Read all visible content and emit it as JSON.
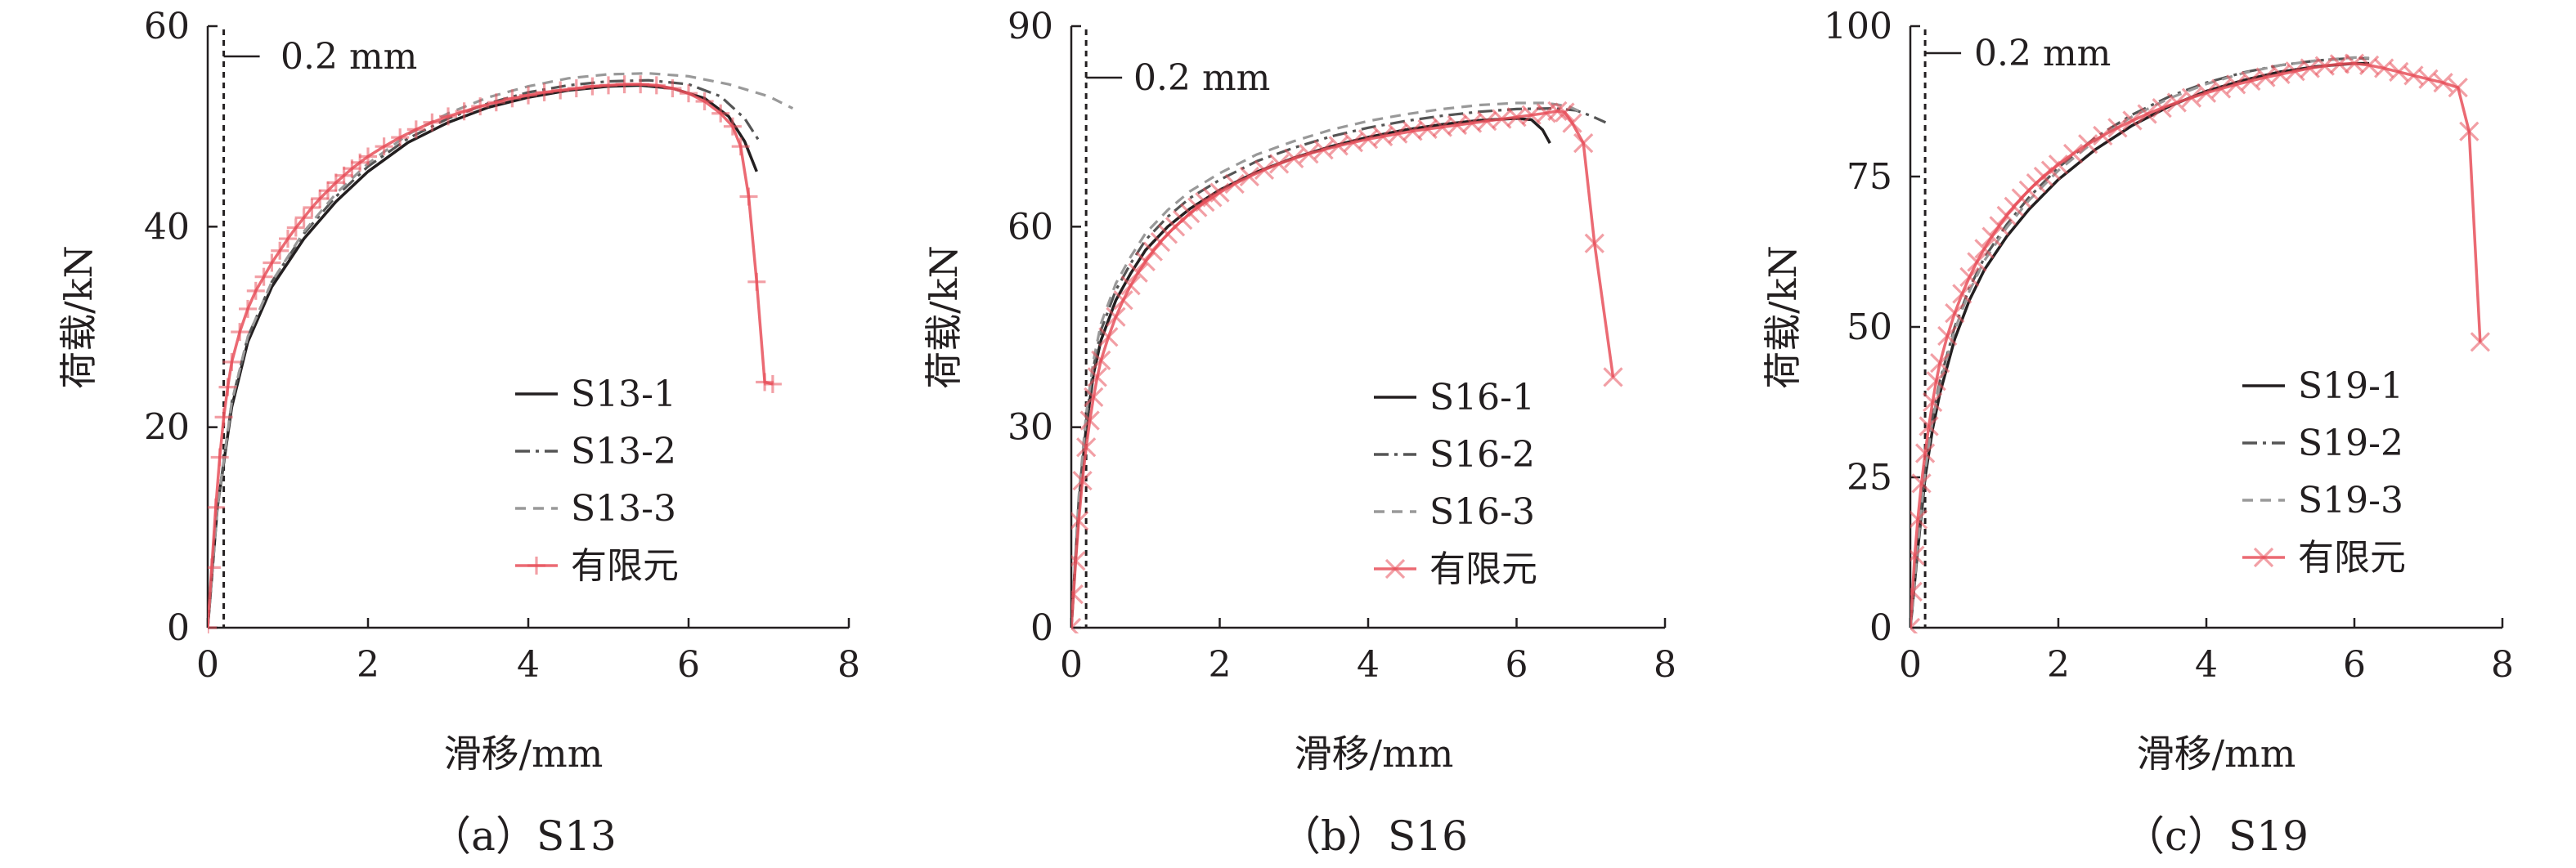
{
  "chart_data": [
    {
      "type": "line",
      "caption": "（a）S13",
      "xlabel": "滑移/mm",
      "ylabel": "荷载/kN",
      "xlim": [
        0,
        8
      ],
      "ylim": [
        0,
        60
      ],
      "xticks": [
        0,
        2,
        4,
        6,
        8
      ],
      "yticks": [
        0,
        20,
        40,
        60
      ],
      "annotation": "0.2 mm",
      "reference_x": 0.2,
      "legend_position": "bottom-right",
      "fe_marker": "plus",
      "series": [
        {
          "name": "S13-1",
          "style": "solid",
          "color": "#231f20",
          "x": [
            0,
            0.12,
            0.3,
            0.5,
            0.8,
            1.2,
            1.6,
            2.0,
            2.5,
            3.0,
            3.5,
            4.0,
            4.5,
            5.0,
            5.4,
            5.8,
            6.2,
            6.5,
            6.7,
            6.85
          ],
          "y": [
            0,
            12,
            22,
            28.5,
            34,
            38.8,
            42.5,
            45.5,
            48.4,
            50.4,
            51.9,
            52.9,
            53.6,
            54.0,
            54.1,
            53.8,
            52.8,
            51.0,
            48.5,
            45.5
          ]
        },
        {
          "name": "S13-2",
          "style": "dashdot",
          "color": "#555555",
          "x": [
            0,
            0.12,
            0.3,
            0.5,
            0.8,
            1.2,
            1.6,
            2.0,
            2.5,
            3.0,
            3.5,
            4.0,
            4.5,
            5.0,
            5.5,
            6.0,
            6.4,
            6.7,
            6.9
          ],
          "y": [
            0,
            12,
            22.5,
            29,
            34.5,
            39.3,
            43,
            46,
            48.8,
            50.8,
            52.3,
            53.4,
            54.1,
            54.5,
            54.6,
            54.2,
            53.0,
            50.8,
            48.3
          ]
        },
        {
          "name": "S13-3",
          "style": "dashed",
          "color": "#999999",
          "x": [
            0,
            0.12,
            0.3,
            0.5,
            0.8,
            1.2,
            1.6,
            2.0,
            2.5,
            3.0,
            3.5,
            4.0,
            4.5,
            5.0,
            5.5,
            6.0,
            6.5,
            7.0,
            7.3
          ],
          "y": [
            0,
            12,
            22.5,
            29,
            34.5,
            39.5,
            43.3,
            46.3,
            49.2,
            51.3,
            52.9,
            54.0,
            54.8,
            55.2,
            55.3,
            55.0,
            54.2,
            53.0,
            51.8
          ]
        },
        {
          "name": "有限元",
          "style": "marker",
          "color": "#e8505b",
          "x": [
            0,
            0.05,
            0.1,
            0.15,
            0.2,
            0.25,
            0.3,
            0.4,
            0.5,
            0.6,
            0.7,
            0.8,
            0.9,
            1.0,
            1.1,
            1.2,
            1.3,
            1.4,
            1.5,
            1.6,
            1.7,
            1.8,
            1.9,
            2.0,
            2.2,
            2.4,
            2.6,
            2.8,
            3.0,
            3.2,
            3.4,
            3.6,
            3.8,
            4.0,
            4.2,
            4.4,
            4.6,
            4.8,
            5.0,
            5.2,
            5.4,
            5.6,
            5.8,
            6.0,
            6.2,
            6.4,
            6.55,
            6.65,
            6.75,
            6.85,
            6.95,
            7.05
          ],
          "y": [
            0,
            6,
            12,
            17,
            21,
            24,
            26.5,
            29.5,
            31.8,
            33.6,
            35,
            36.4,
            37.6,
            38.8,
            39.9,
            40.9,
            41.9,
            42.8,
            43.6,
            44.4,
            45.1,
            45.8,
            46.4,
            47.0,
            48.0,
            48.9,
            49.7,
            50.4,
            51.0,
            51.5,
            52.0,
            52.4,
            52.8,
            53.1,
            53.4,
            53.6,
            53.8,
            54.0,
            54.1,
            54.2,
            54.2,
            54.1,
            53.8,
            53.3,
            52.5,
            51.3,
            50.0,
            48.0,
            43.0,
            34.5,
            24.5,
            24.3
          ]
        }
      ]
    },
    {
      "type": "line",
      "caption": "（b）S16",
      "xlabel": "滑移/mm",
      "ylabel": "荷载/kN",
      "xlim": [
        0,
        8
      ],
      "ylim": [
        0,
        90
      ],
      "xticks": [
        0,
        2,
        4,
        6,
        8
      ],
      "yticks": [
        0,
        30,
        60,
        90
      ],
      "annotation": "0.2 mm",
      "reference_x": 0.2,
      "legend_position": "bottom-right",
      "fe_marker": "cross",
      "series": [
        {
          "name": "S16-1",
          "style": "solid",
          "color": "#231f20",
          "x": [
            0,
            0.1,
            0.2,
            0.3,
            0.4,
            0.6,
            0.8,
            1.0,
            1.3,
            1.6,
            2.0,
            2.5,
            3.0,
            3.5,
            4.0,
            4.5,
            5.0,
            5.5,
            6.0,
            6.2,
            6.35,
            6.45
          ],
          "y": [
            0,
            18,
            30,
            38,
            43,
            49,
            53,
            56.5,
            60,
            62.7,
            65.5,
            68.2,
            70.3,
            72,
            73.4,
            74.5,
            75.3,
            75.9,
            76.2,
            76,
            74.5,
            72.5
          ]
        },
        {
          "name": "S16-2",
          "style": "dashdot",
          "color": "#555555",
          "x": [
            0,
            0.1,
            0.2,
            0.3,
            0.4,
            0.6,
            0.8,
            1.0,
            1.3,
            1.6,
            2.0,
            2.5,
            3.0,
            3.5,
            4.0,
            4.5,
            5.0,
            5.5,
            6.0,
            6.5,
            6.8,
            7.0,
            7.2
          ],
          "y": [
            0,
            19,
            31,
            39,
            44.5,
            50.5,
            54.5,
            58,
            61.5,
            64.3,
            67,
            69.8,
            71.8,
            73.5,
            74.8,
            75.8,
            76.6,
            77.2,
            77.6,
            77.7,
            77.4,
            76.6,
            75.6
          ]
        },
        {
          "name": "S16-3",
          "style": "dashed",
          "color": "#999999",
          "x": [
            0,
            0.1,
            0.2,
            0.3,
            0.4,
            0.6,
            0.8,
            1.0,
            1.3,
            1.6,
            2.0,
            2.5,
            3.0,
            3.5,
            4.0,
            4.5,
            5.0,
            5.5,
            6.0,
            6.4,
            6.7,
            6.9
          ],
          "y": [
            0,
            19.5,
            32,
            40,
            45.5,
            51.5,
            55.5,
            59,
            62.5,
            65.3,
            68,
            70.8,
            72.8,
            74.5,
            75.8,
            76.8,
            77.6,
            78.2,
            78.5,
            78.5,
            78,
            77
          ]
        },
        {
          "name": "有限元",
          "style": "marker",
          "color": "#e8505b",
          "x": [
            0,
            0.03,
            0.06,
            0.1,
            0.15,
            0.2,
            0.25,
            0.3,
            0.35,
            0.4,
            0.5,
            0.6,
            0.7,
            0.8,
            0.9,
            1.0,
            1.1,
            1.2,
            1.3,
            1.4,
            1.5,
            1.6,
            1.7,
            1.8,
            1.9,
            2.0,
            2.2,
            2.4,
            2.6,
            2.8,
            3.0,
            3.2,
            3.4,
            3.6,
            3.8,
            4.0,
            4.2,
            4.4,
            4.6,
            4.8,
            5.0,
            5.2,
            5.4,
            5.6,
            5.8,
            6.0,
            6.2,
            6.4,
            6.55,
            6.65,
            6.75,
            6.9,
            7.05,
            7.3
          ],
          "y": [
            0,
            5,
            10,
            16,
            22,
            27,
            31,
            34.5,
            37.5,
            40,
            43.5,
            46.5,
            49,
            51.2,
            53.1,
            54.8,
            56.3,
            57.7,
            58.9,
            60,
            61,
            62,
            62.9,
            63.7,
            64.4,
            65.1,
            66.4,
            67.5,
            68.5,
            69.4,
            70.2,
            70.9,
            71.5,
            72.1,
            72.6,
            73.1,
            73.5,
            73.9,
            74.3,
            74.6,
            74.9,
            75.2,
            75.5,
            75.8,
            76.1,
            76.4,
            76.7,
            77,
            77.3,
            77.1,
            75.5,
            72.5,
            57.5,
            37.5
          ]
        }
      ]
    },
    {
      "type": "line",
      "caption": "（c）S19",
      "xlabel": "滑移/mm",
      "ylabel": "荷载/kN",
      "xlim": [
        0,
        8
      ],
      "ylim": [
        0,
        100
      ],
      "xticks": [
        0,
        2,
        4,
        6,
        8
      ],
      "yticks": [
        0,
        25,
        50,
        75,
        100
      ],
      "annotation": "0.2 mm",
      "reference_x": 0.2,
      "legend_position": "bottom-right",
      "fe_marker": "cross",
      "series": [
        {
          "name": "S19-1",
          "style": "solid",
          "color": "#231f20",
          "x": [
            0,
            0.1,
            0.2,
            0.3,
            0.4,
            0.6,
            0.8,
            1.0,
            1.3,
            1.6,
            2.0,
            2.5,
            3.0,
            3.5,
            4.0,
            4.5,
            5.0,
            5.5,
            6.0,
            6.2
          ],
          "y": [
            0,
            13,
            25,
            33,
            39,
            48,
            54.5,
            59.5,
            65,
            69.5,
            74.5,
            79.5,
            83.5,
            86.7,
            89.2,
            91,
            92.4,
            93.3,
            93.8,
            93.8
          ]
        },
        {
          "name": "S19-2",
          "style": "dashdot",
          "color": "#555555",
          "x": [
            0,
            0.1,
            0.2,
            0.3,
            0.4,
            0.6,
            0.8,
            1.0,
            1.3,
            1.6,
            2.0,
            2.5,
            3.0,
            3.5,
            4.0,
            4.5,
            5.0,
            5.5,
            6.0,
            6.2
          ],
          "y": [
            0,
            14,
            26.5,
            35,
            41,
            50,
            56.5,
            61.5,
            67,
            71.5,
            76.5,
            81.5,
            85.3,
            88.3,
            90.6,
            92.3,
            93.5,
            94.3,
            94.7,
            94.6
          ]
        },
        {
          "name": "S19-3",
          "style": "dashed",
          "color": "#999999",
          "x": [
            0,
            0.1,
            0.2,
            0.3,
            0.4,
            0.6,
            0.8,
            1.0,
            1.3,
            1.6,
            2.0,
            2.5,
            3.0,
            3.5,
            4.0,
            4.5,
            5.0,
            5.5,
            6.0,
            6.2
          ],
          "y": [
            0,
            13.5,
            26,
            34.5,
            40.5,
            49.5,
            56,
            61,
            66.5,
            71,
            76,
            81,
            85,
            88,
            90.4,
            92.2,
            93.5,
            94.3,
            94.8,
            94.7
          ]
        },
        {
          "name": "有限元",
          "style": "marker",
          "color": "#e8505b",
          "x": [
            0,
            0.03,
            0.06,
            0.1,
            0.15,
            0.2,
            0.25,
            0.3,
            0.35,
            0.4,
            0.5,
            0.6,
            0.7,
            0.8,
            0.9,
            1.0,
            1.1,
            1.2,
            1.3,
            1.4,
            1.5,
            1.6,
            1.7,
            1.8,
            1.9,
            2.0,
            2.2,
            2.4,
            2.6,
            2.8,
            3.0,
            3.2,
            3.4,
            3.6,
            3.8,
            4.0,
            4.2,
            4.4,
            4.6,
            4.8,
            5.0,
            5.2,
            5.4,
            5.6,
            5.8,
            6.0,
            6.2,
            6.4,
            6.6,
            6.8,
            7.0,
            7.2,
            7.4,
            7.55,
            7.7
          ],
          "y": [
            0,
            6,
            12,
            18,
            24,
            29,
            33.5,
            37.5,
            41,
            44,
            48.5,
            52.3,
            55.5,
            58.3,
            60.8,
            63,
            65,
            66.8,
            68.5,
            70,
            71.4,
            72.7,
            73.9,
            75,
            76,
            77,
            78.8,
            80.4,
            81.8,
            83.1,
            84.3,
            85.4,
            86.4,
            87.3,
            88.1,
            88.9,
            89.6,
            90.3,
            90.9,
            91.5,
            92,
            92.5,
            93,
            93.4,
            93.7,
            93.8,
            93.5,
            93,
            92.4,
            91.8,
            91.2,
            90.6,
            89.8,
            82.5,
            47.5
          ]
        }
      ]
    }
  ]
}
